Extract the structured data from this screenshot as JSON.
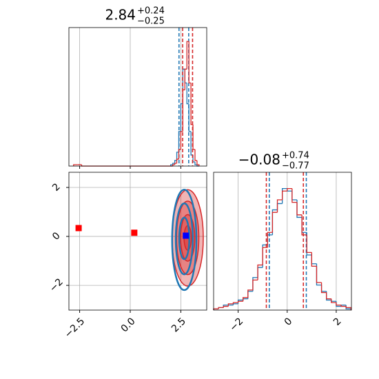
{
  "chart_data": [
    {
      "type": "hist",
      "title": "2.84",
      "title_upper": "+0.24",
      "title_lower": "−0.25",
      "xlim": [
        -3.03,
        3.78
      ],
      "ylim": [
        0,
        100
      ],
      "xticks": [
        -2.5,
        0,
        2.5
      ],
      "xtick_labels": false,
      "grid": true,
      "series": [
        {
          "color": "#1f77b4",
          "bins": [
            2.0,
            2.1,
            2.2,
            2.3,
            2.4,
            2.5,
            2.6,
            2.7,
            2.8,
            2.9,
            3.0,
            3.1,
            3.2,
            3.3,
            3.4
          ],
          "values": [
            1,
            2,
            4,
            10,
            25,
            45,
            70,
            60,
            45,
            25,
            8,
            3,
            1,
            0
          ],
          "quantiles": [
            2.41,
            2.89
          ]
        },
        {
          "color": "#d62728",
          "bins": [
            -2.8,
            -2.6,
            -2.4,
            2.0,
            2.1,
            2.2,
            2.3,
            2.4,
            2.5,
            2.6,
            2.7,
            2.8,
            2.9,
            3.0,
            3.1,
            3.2,
            3.3,
            3.4
          ],
          "values": [
            1,
            1,
            0,
            0,
            1,
            2,
            5,
            12,
            25,
            55,
            70,
            90,
            60,
            30,
            12,
            4,
            1
          ],
          "quantiles": [
            2.59,
            3.08
          ]
        }
      ]
    },
    {
      "type": "contour",
      "xlim": [
        -3.03,
        3.78
      ],
      "ylim": [
        -3.01,
        2.62
      ],
      "xticks": [
        {
          "value": -2.5,
          "label": "−2.5"
        },
        {
          "value": 0,
          "label": "0.0"
        },
        2.5
      ],
      "yticks": [
        {
          "value": -2,
          "label": "−2"
        },
        0,
        2
      ],
      "grid": true,
      "series": [
        {
          "color": "#d62728",
          "fill": true,
          "contours": [
            {
              "x": 2.84,
              "y": -0.06,
              "rx": 0.77,
              "ry": 1.97
            },
            {
              "x": 2.84,
              "y": -0.06,
              "rx": 0.55,
              "ry": 1.5
            },
            {
              "x": 2.84,
              "y": -0.06,
              "rx": 0.35,
              "ry": 0.95
            },
            {
              "x": 2.84,
              "y": -0.06,
              "rx": 0.18,
              "ry": 0.5
            }
          ]
        },
        {
          "color": "#1f77b4",
          "fill": false,
          "contours": [
            {
              "x": 2.67,
              "y": -0.14,
              "rx": 0.6,
              "ry": 2.05
            },
            {
              "x": 2.67,
              "y": -0.1,
              "rx": 0.42,
              "ry": 1.45
            },
            {
              "x": 2.67,
              "y": -0.08,
              "rx": 0.25,
              "ry": 0.85
            }
          ]
        }
      ],
      "points": [
        {
          "x": -2.55,
          "y": 0.34,
          "color": "#ff0000"
        },
        {
          "x": 0.2,
          "y": 0.15,
          "color": "#ff0000"
        },
        {
          "x": 2.75,
          "y": 0.03,
          "color": "#0000ff"
        }
      ]
    },
    {
      "type": "hist",
      "title": "−0.08",
      "title_upper": "+0.74",
      "title_lower": "−0.77",
      "xlim": [
        -3.0,
        2.62
      ],
      "ylim": [
        0,
        110
      ],
      "xticks": [
        {
          "value": -2,
          "label": "−2"
        },
        0,
        2
      ],
      "xtick_labels": true,
      "grid": true,
      "series": [
        {
          "color": "#1f77b4",
          "bins": [
            -3.0,
            -2.8,
            -2.6,
            -2.4,
            -2.2,
            -2.0,
            -1.8,
            -1.6,
            -1.4,
            -1.2,
            -1.0,
            -0.8,
            -0.6,
            -0.4,
            -0.2,
            0.0,
            0.2,
            0.4,
            0.6,
            0.8,
            1.0,
            1.2,
            1.4,
            1.6,
            1.8,
            2.0,
            2.2,
            2.4,
            2.6
          ],
          "values": [
            1,
            2,
            4,
            4,
            5,
            8,
            9,
            15,
            26,
            34,
            52,
            60,
            80,
            85,
            97,
            95,
            88,
            74,
            62,
            44,
            37,
            20,
            15,
            8,
            7,
            3,
            4,
            1
          ],
          "quantiles": [
            -0.73,
            0.78
          ]
        },
        {
          "color": "#d62728",
          "bins": [
            -3.0,
            -2.8,
            -2.6,
            -2.4,
            -2.2,
            -2.0,
            -1.8,
            -1.6,
            -1.4,
            -1.2,
            -1.0,
            -0.8,
            -0.6,
            -0.4,
            -0.2,
            0.0,
            0.2,
            0.4,
            0.6,
            0.8,
            1.0,
            1.2,
            1.4,
            1.6,
            1.8,
            2.0,
            2.2,
            2.4,
            2.6
          ],
          "values": [
            1,
            2,
            3,
            5,
            6,
            7,
            10,
            16,
            24,
            36,
            50,
            62,
            78,
            88,
            95,
            97,
            86,
            76,
            60,
            46,
            35,
            22,
            14,
            9,
            6,
            4,
            3,
            2
          ],
          "quantiles": [
            -0.85,
            0.66
          ]
        }
      ]
    }
  ]
}
